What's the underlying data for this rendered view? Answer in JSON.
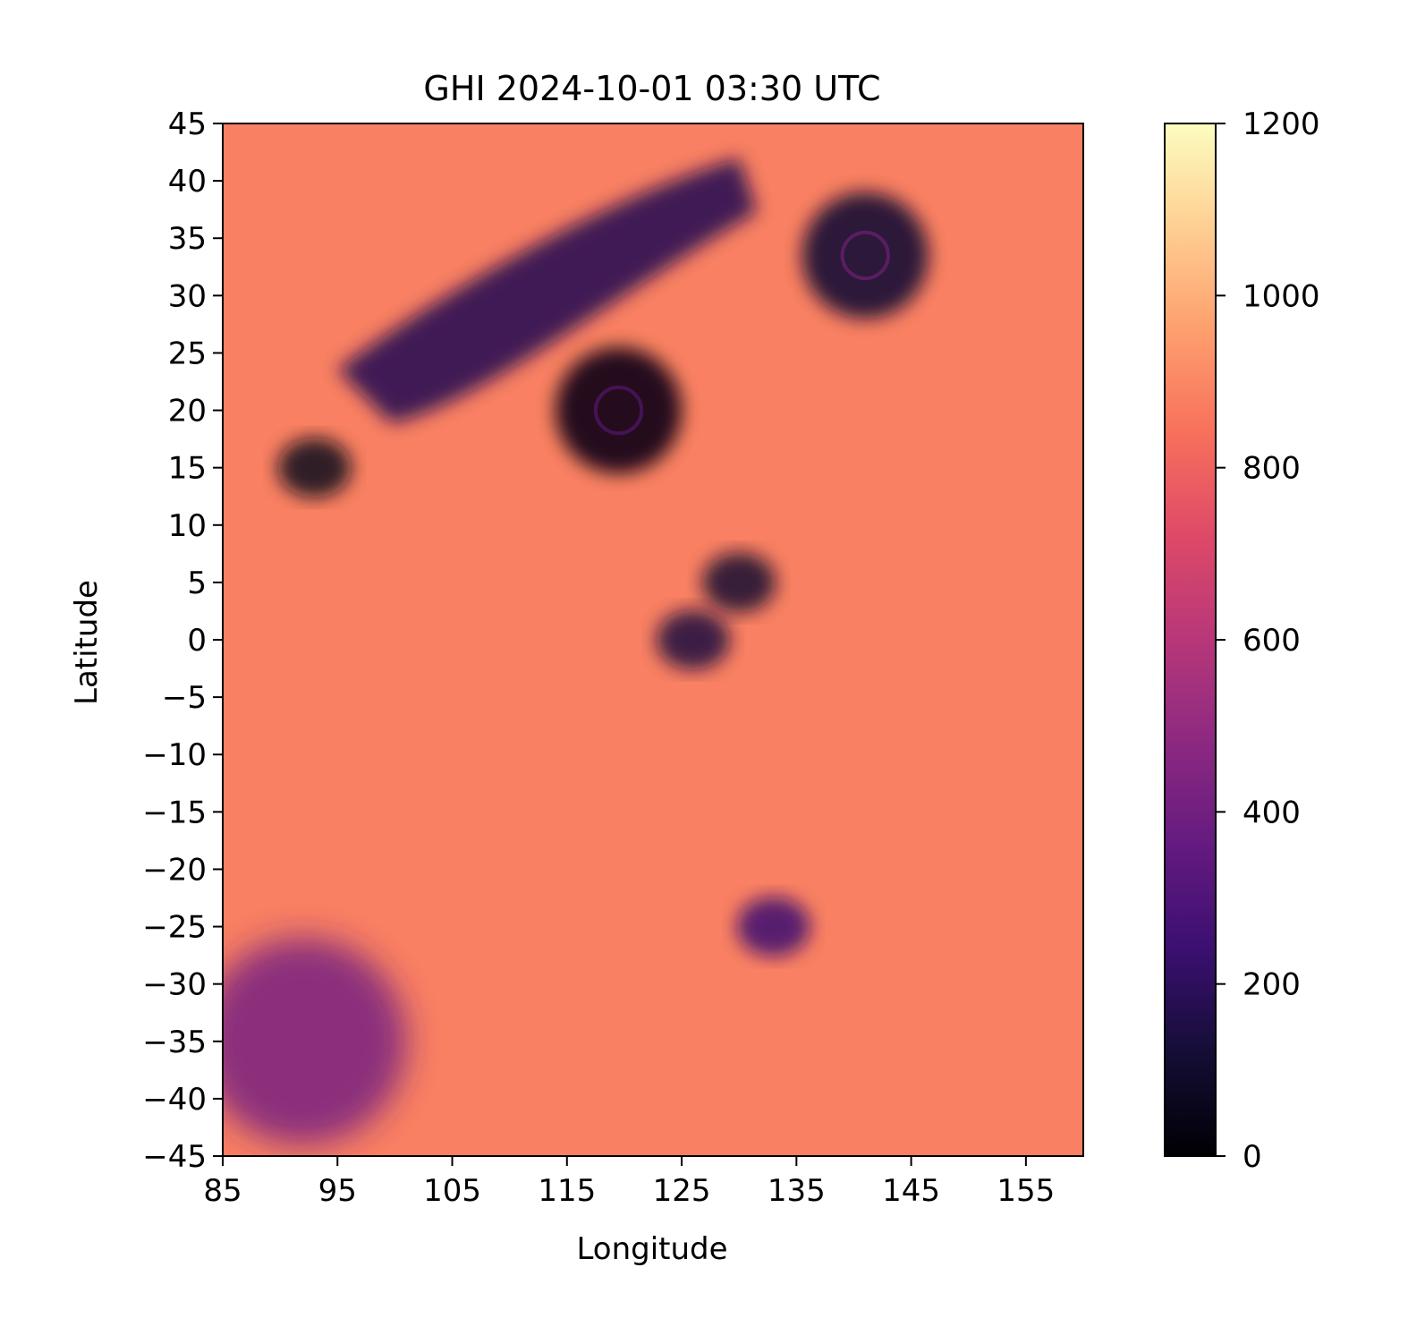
{
  "chart_data": {
    "type": "heatmap",
    "title": "GHI 2024-10-01 03:30 UTC",
    "xlabel": "Longitude",
    "ylabel": "Latitude",
    "xlim": [
      85,
      160
    ],
    "ylim": [
      -45,
      45
    ],
    "x_ticks": [
      85,
      95,
      105,
      115,
      125,
      135,
      145,
      155
    ],
    "y_ticks": [
      45,
      40,
      35,
      30,
      25,
      20,
      15,
      10,
      5,
      0,
      -5,
      -10,
      -15,
      -20,
      -25,
      -30,
      -35,
      -40,
      -45
    ],
    "x_tick_labels": [
      "85",
      "95",
      "105",
      "115",
      "125",
      "135",
      "145",
      "155"
    ],
    "y_tick_labels": [
      "45",
      "40",
      "35",
      "30",
      "25",
      "20",
      "15",
      "10",
      "5",
      "0",
      "−5",
      "−10",
      "−15",
      "−20",
      "−25",
      "−30",
      "−35",
      "−40",
      "−45"
    ],
    "colormap": "magma",
    "colorbar": {
      "range": [
        0,
        1200
      ],
      "ticks": [
        0,
        200,
        400,
        600,
        800,
        1000,
        1200
      ],
      "tick_labels": [
        "0",
        "200",
        "400",
        "600",
        "800",
        "1000",
        "1200"
      ]
    },
    "grid": false,
    "background_value": 880,
    "features": [
      {
        "kind": "cyclone",
        "lon": 119.5,
        "lat": 20.0,
        "value": 40
      },
      {
        "kind": "cyclone",
        "lon": 141.0,
        "lat": 33.5,
        "value": 120
      },
      {
        "kind": "cloud-band",
        "lon_range": [
          95,
          130
        ],
        "lat_range": [
          22,
          42
        ],
        "value": 180
      },
      {
        "kind": "cloud-cluster",
        "lon": 93.0,
        "lat": 15.0,
        "value": 60
      },
      {
        "kind": "cloud-cluster",
        "lon": 130.0,
        "lat": 5.0,
        "value": 110
      },
      {
        "kind": "cloud-cluster",
        "lon": 126.0,
        "lat": 0.0,
        "value": 140
      },
      {
        "kind": "cloud-cluster",
        "lon": 133.0,
        "lat": -25.0,
        "value": 250
      },
      {
        "kind": "cloud-field",
        "lon": 92.0,
        "lat": -35.0,
        "value": 420
      }
    ]
  }
}
